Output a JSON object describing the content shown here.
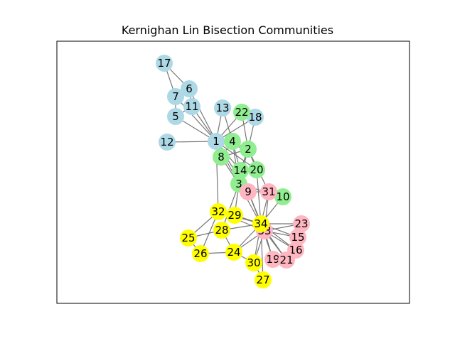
{
  "title": "Kernighan Lin Bisection Communities",
  "colors": {
    "blue": "#add8e6",
    "green": "#90ee90",
    "pink": "#ffb6c1",
    "yellow": "#ffff00",
    "edge": "#777777"
  },
  "nodes": [
    {
      "id": "17",
      "group": "blue"
    },
    {
      "id": "6",
      "group": "blue"
    },
    {
      "id": "7",
      "group": "blue"
    },
    {
      "id": "11",
      "group": "blue"
    },
    {
      "id": "5",
      "group": "blue"
    },
    {
      "id": "13",
      "group": "blue"
    },
    {
      "id": "12",
      "group": "blue"
    },
    {
      "id": "1",
      "group": "blue"
    },
    {
      "id": "18",
      "group": "blue"
    },
    {
      "id": "22",
      "group": "green"
    },
    {
      "id": "4",
      "group": "green"
    },
    {
      "id": "2",
      "group": "green"
    },
    {
      "id": "8",
      "group": "green"
    },
    {
      "id": "14",
      "group": "green"
    },
    {
      "id": "20",
      "group": "green"
    },
    {
      "id": "3",
      "group": "green"
    },
    {
      "id": "10",
      "group": "green"
    },
    {
      "id": "9",
      "group": "pink"
    },
    {
      "id": "31",
      "group": "pink"
    },
    {
      "id": "23",
      "group": "pink"
    },
    {
      "id": "15",
      "group": "pink"
    },
    {
      "id": "16",
      "group": "pink"
    },
    {
      "id": "19",
      "group": "pink"
    },
    {
      "id": "21",
      "group": "pink"
    },
    {
      "id": "33",
      "group": "pink"
    },
    {
      "id": "32",
      "group": "yellow"
    },
    {
      "id": "29",
      "group": "yellow"
    },
    {
      "id": "28",
      "group": "yellow"
    },
    {
      "id": "34",
      "group": "yellow"
    },
    {
      "id": "25",
      "group": "yellow"
    },
    {
      "id": "26",
      "group": "yellow"
    },
    {
      "id": "24",
      "group": "yellow"
    },
    {
      "id": "30",
      "group": "yellow"
    },
    {
      "id": "27",
      "group": "yellow"
    }
  ],
  "edges": [
    [
      "1",
      "2"
    ],
    [
      "1",
      "3"
    ],
    [
      "1",
      "4"
    ],
    [
      "1",
      "5"
    ],
    [
      "1",
      "6"
    ],
    [
      "1",
      "7"
    ],
    [
      "1",
      "8"
    ],
    [
      "1",
      "9"
    ],
    [
      "1",
      "11"
    ],
    [
      "1",
      "12"
    ],
    [
      "1",
      "13"
    ],
    [
      "1",
      "14"
    ],
    [
      "1",
      "18"
    ],
    [
      "1",
      "20"
    ],
    [
      "1",
      "22"
    ],
    [
      "1",
      "32"
    ],
    [
      "2",
      "3"
    ],
    [
      "2",
      "4"
    ],
    [
      "2",
      "8"
    ],
    [
      "2",
      "14"
    ],
    [
      "2",
      "18"
    ],
    [
      "2",
      "20"
    ],
    [
      "2",
      "22"
    ],
    [
      "2",
      "31"
    ],
    [
      "3",
      "4"
    ],
    [
      "3",
      "8"
    ],
    [
      "3",
      "9"
    ],
    [
      "3",
      "10"
    ],
    [
      "3",
      "14"
    ],
    [
      "3",
      "28"
    ],
    [
      "3",
      "29"
    ],
    [
      "3",
      "33"
    ],
    [
      "4",
      "8"
    ],
    [
      "4",
      "13"
    ],
    [
      "4",
      "14"
    ],
    [
      "5",
      "7"
    ],
    [
      "5",
      "11"
    ],
    [
      "6",
      "7"
    ],
    [
      "6",
      "11"
    ],
    [
      "6",
      "17"
    ],
    [
      "7",
      "17"
    ],
    [
      "9",
      "31"
    ],
    [
      "9",
      "33"
    ],
    [
      "9",
      "34"
    ],
    [
      "10",
      "34"
    ],
    [
      "14",
      "34"
    ],
    [
      "15",
      "33"
    ],
    [
      "15",
      "34"
    ],
    [
      "16",
      "33"
    ],
    [
      "16",
      "34"
    ],
    [
      "19",
      "33"
    ],
    [
      "19",
      "34"
    ],
    [
      "20",
      "34"
    ],
    [
      "21",
      "33"
    ],
    [
      "21",
      "34"
    ],
    [
      "23",
      "33"
    ],
    [
      "23",
      "34"
    ],
    [
      "24",
      "26"
    ],
    [
      "24",
      "28"
    ],
    [
      "24",
      "30"
    ],
    [
      "24",
      "33"
    ],
    [
      "24",
      "34"
    ],
    [
      "25",
      "26"
    ],
    [
      "25",
      "28"
    ],
    [
      "25",
      "32"
    ],
    [
      "26",
      "32"
    ],
    [
      "27",
      "30"
    ],
    [
      "27",
      "34"
    ],
    [
      "28",
      "34"
    ],
    [
      "29",
      "32"
    ],
    [
      "29",
      "34"
    ],
    [
      "30",
      "33"
    ],
    [
      "30",
      "34"
    ],
    [
      "31",
      "33"
    ],
    [
      "31",
      "34"
    ],
    [
      "32",
      "33"
    ],
    [
      "32",
      "34"
    ],
    [
      "33",
      "34"
    ]
  ]
}
